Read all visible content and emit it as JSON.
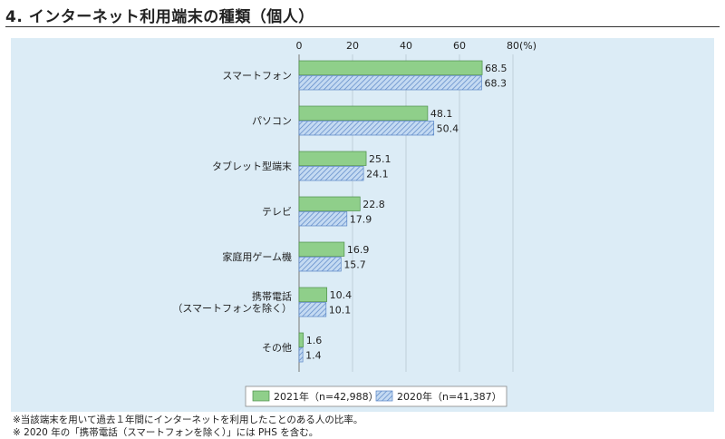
{
  "title": "4. インターネット利用端末の種類（個人）",
  "notes": [
    "※当該端末を用いて過去１年間にインターネットを利用したことのある人の比率。",
    "※ 2020 年の「携帯電話（スマートフォンを除く）」には PHS を含む。"
  ],
  "chart_data": {
    "type": "bar",
    "orientation": "horizontal",
    "title": "4. インターネット利用端末の種類（個人）",
    "xlabel": "",
    "ylabel": "",
    "unit": "(%)",
    "xlim": [
      0,
      80
    ],
    "ticks": [
      0,
      20,
      40,
      60,
      80
    ],
    "grid": true,
    "legend_position": "bottom",
    "categories": [
      [
        "スマートフォン"
      ],
      [
        "パソコン"
      ],
      [
        "タブレット型端末"
      ],
      [
        "テレビ"
      ],
      [
        "家庭用ゲーム機"
      ],
      [
        "携帯電話",
        "（スマートフォンを除く）"
      ],
      [
        "その他"
      ]
    ],
    "series": [
      {
        "name": "2021年（n=42,988）",
        "color": "#8fcf8a",
        "fill": "solid",
        "values": [
          68.5,
          48.1,
          25.1,
          22.8,
          16.9,
          10.4,
          1.6
        ]
      },
      {
        "name": "2020年（n=41,387）",
        "color": "#a9c8ea",
        "fill": "hatched",
        "values": [
          68.3,
          50.4,
          24.1,
          17.9,
          15.7,
          10.1,
          1.4
        ]
      }
    ]
  }
}
